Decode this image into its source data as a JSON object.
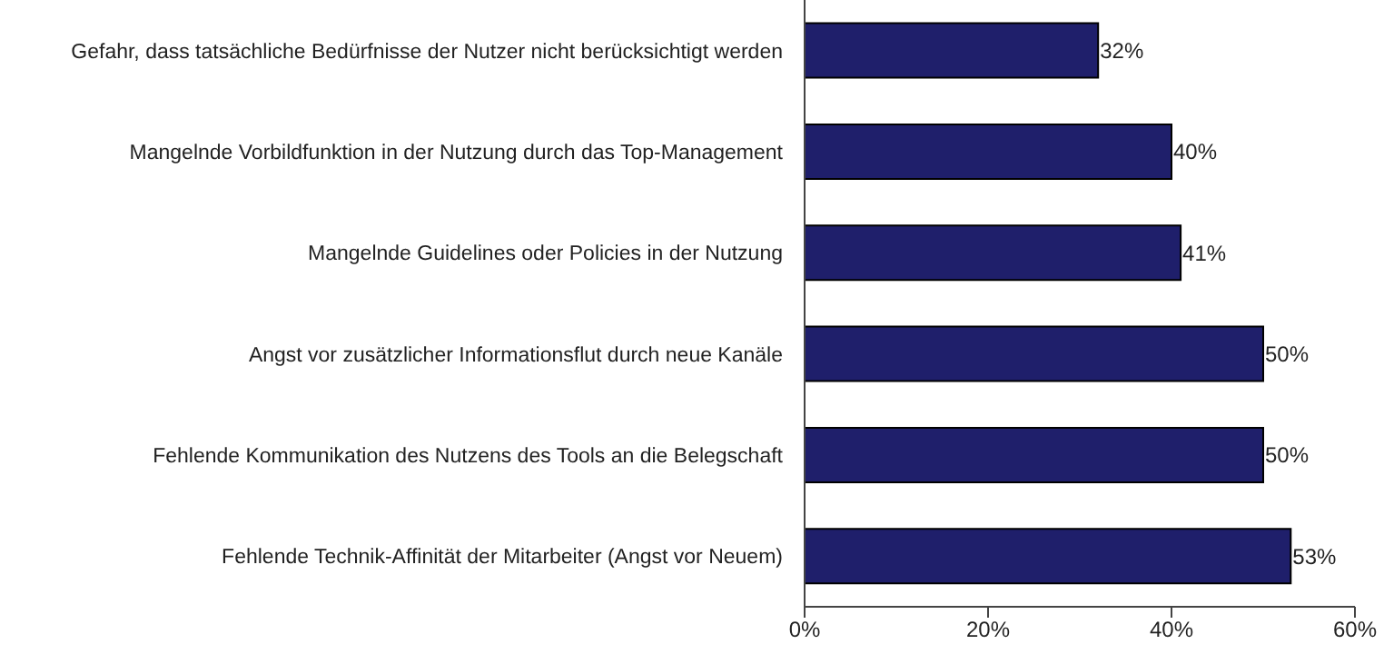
{
  "chart_data": {
    "type": "bar",
    "orientation": "horizontal",
    "categories": [
      "Gefahr, dass tatsächliche Bedürfnisse der Nutzer nicht berücksichtigt werden",
      "Mangelnde Vorbildfunktion in der Nutzung durch das Top-Management",
      "Mangelnde Guidelines oder Policies in der Nutzung",
      "Angst vor zusätzlicher Informationsflut durch neue Kanäle",
      "Fehlende Kommunikation des Nutzens des Tools an die Belegschaft",
      "Fehlende Technik-Affinität der Mitarbeiter (Angst vor Neuem)"
    ],
    "values": [
      32,
      40,
      41,
      50,
      50,
      53
    ],
    "value_labels": [
      "32%",
      "40%",
      "41%",
      "50%",
      "50%",
      "53%"
    ],
    "color": "#1f1f6b",
    "xlim": [
      0,
      60
    ],
    "xticks": [
      {
        "value": 0,
        "label": "0%"
      },
      {
        "value": 20,
        "label": "20%"
      },
      {
        "value": 40,
        "label": "40%"
      },
      {
        "value": 60,
        "label": "60%"
      }
    ],
    "grid": false
  }
}
